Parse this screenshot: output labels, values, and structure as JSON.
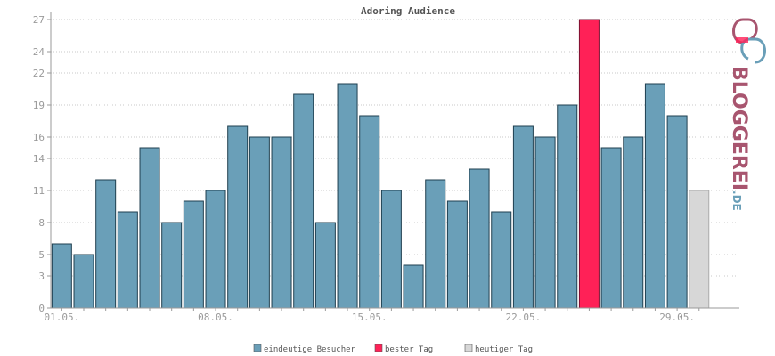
{
  "chart_data": {
    "type": "bar",
    "title": "Adoring Audience",
    "xlabel": "",
    "ylabel": "",
    "ylim": [
      0,
      27
    ],
    "yticks": [
      0,
      3,
      5,
      8,
      11,
      14,
      16,
      19,
      22,
      24,
      27
    ],
    "grid": true,
    "legend_position": "bottom-center",
    "xticks": [
      {
        "day": 1,
        "label": "01.05."
      },
      {
        "day": 8,
        "label": "08.05."
      },
      {
        "day": 15,
        "label": "15.05."
      },
      {
        "day": 22,
        "label": "22.05."
      },
      {
        "day": 29,
        "label": "29.05."
      }
    ],
    "days": [
      1,
      2,
      3,
      4,
      5,
      6,
      7,
      8,
      9,
      10,
      11,
      12,
      13,
      14,
      15,
      16,
      17,
      18,
      19,
      20,
      21,
      22,
      23,
      24,
      25,
      26,
      27,
      28,
      29,
      30
    ],
    "values": [
      6,
      5,
      12,
      9,
      15,
      8,
      10,
      11,
      17,
      16,
      16,
      20,
      8,
      21,
      18,
      11,
      4,
      12,
      10,
      13,
      9,
      17,
      16,
      19,
      27,
      15,
      16,
      21,
      18,
      11
    ],
    "kinds": [
      "v",
      "v",
      "v",
      "v",
      "v",
      "v",
      "v",
      "v",
      "v",
      "v",
      "v",
      "v",
      "v",
      "v",
      "v",
      "v",
      "v",
      "v",
      "v",
      "v",
      "v",
      "v",
      "v",
      "v",
      "best",
      "v",
      "v",
      "v",
      "v",
      "today"
    ],
    "series": [
      {
        "name": "eindeutige Besucher",
        "color": "#6a9fb8"
      },
      {
        "name": "bester Tag",
        "color": "#ff2157"
      },
      {
        "name": "heutiger Tag",
        "color": "#d7d7d7"
      }
    ]
  },
  "logo": {
    "text_main": "BLOGGEREI",
    "text_suffix": ".DE",
    "color_main": "#a8556f",
    "color_suffix": "#6a9fb8"
  }
}
